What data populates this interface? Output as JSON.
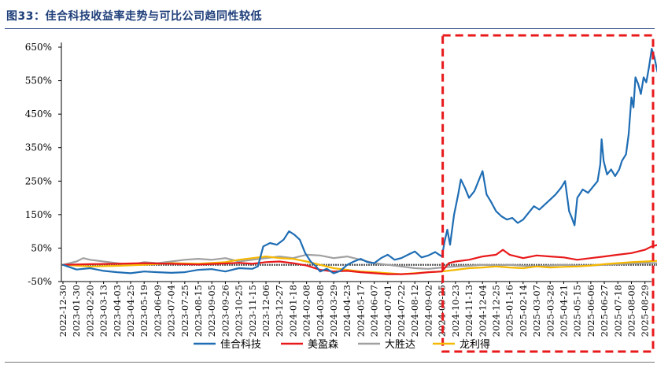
{
  "figure": {
    "title": "图33：佳合科技收益率走势与可比公司趋同性较低"
  },
  "chart_data": {
    "type": "line",
    "title": "图33：佳合科技收益率走势与可比公司趋同性较低",
    "xlabel": "",
    "ylabel": "",
    "ylim": [
      -50,
      650
    ],
    "yticks": [
      "650%",
      "550%",
      "450%",
      "350%",
      "250%",
      "150%",
      "50%",
      "-50%"
    ],
    "ytick_values": [
      650,
      550,
      450,
      350,
      250,
      150,
      50,
      -50
    ],
    "grid": false,
    "legend_position": "bottom",
    "x_tick_labels": [
      "2022-12-30",
      "2023-01-30",
      "2023-02-20",
      "2023-03-13",
      "2023-04-03",
      "2023-04-25",
      "2023-05-19",
      "2023-06-09",
      "2023-07-04",
      "2023-07-25",
      "2023-08-15",
      "2023-09-05",
      "2023-09-26",
      "2023-10-25",
      "2023-11-15",
      "2023-12-06",
      "2023-12-27",
      "2024-01-18",
      "2024-02-08",
      "2024-03-08",
      "2024-03-29",
      "2024-04-23",
      "2024-05-17",
      "2024-06-07",
      "2024-07-01",
      "2024-07-22",
      "2024-08-12",
      "2024-09-02",
      "2024-09-25",
      "2024-10-23",
      "2024-11-13",
      "2024-12-04",
      "2024-12-25",
      "2025-01-16",
      "2025-02-14",
      "2025-03-07",
      "2025-03-28",
      "2025-04-21",
      "2025-05-15",
      "2025-06-06",
      "2025-06-27",
      "2025-07-18",
      "2025-08-08",
      "2025-08-29"
    ],
    "highlight_box": {
      "from_tick": 28,
      "to_tick": 43,
      "color": "#e8191b",
      "style": "dashed"
    },
    "series": [
      {
        "name": "佳合科技",
        "color": "#1f6db4",
        "points": [
          [
            0,
            0
          ],
          [
            1,
            -14
          ],
          [
            2,
            -10
          ],
          [
            3,
            -18
          ],
          [
            4,
            -22
          ],
          [
            5,
            -25
          ],
          [
            6,
            -20
          ],
          [
            7,
            -22
          ],
          [
            8,
            -24
          ],
          [
            9,
            -22
          ],
          [
            10,
            -15
          ],
          [
            11,
            -13
          ],
          [
            12,
            -20
          ],
          [
            13,
            -10
          ],
          [
            14,
            -12
          ],
          [
            14.4,
            -5
          ],
          [
            14.8,
            55
          ],
          [
            15.3,
            65
          ],
          [
            15.8,
            60
          ],
          [
            16.3,
            75
          ],
          [
            16.7,
            100
          ],
          [
            17.1,
            90
          ],
          [
            17.5,
            75
          ],
          [
            17.9,
            35
          ],
          [
            18.3,
            10
          ],
          [
            18.7,
            -5
          ],
          [
            19,
            -20
          ],
          [
            19.5,
            -12
          ],
          [
            20,
            -25
          ],
          [
            20.5,
            -18
          ],
          [
            21,
            0
          ],
          [
            21.5,
            10
          ],
          [
            22,
            18
          ],
          [
            22.5,
            8
          ],
          [
            23,
            5
          ],
          [
            23.5,
            20
          ],
          [
            24,
            30
          ],
          [
            24.5,
            15
          ],
          [
            25,
            20
          ],
          [
            25.5,
            30
          ],
          [
            26,
            40
          ],
          [
            26.5,
            22
          ],
          [
            27,
            28
          ],
          [
            27.5,
            38
          ],
          [
            27.8,
            30
          ],
          [
            28,
            25
          ],
          [
            28.2,
            70
          ],
          [
            28.4,
            105
          ],
          [
            28.6,
            60
          ],
          [
            28.9,
            150
          ],
          [
            29.2,
            210
          ],
          [
            29.4,
            255
          ],
          [
            29.7,
            230
          ],
          [
            30,
            200
          ],
          [
            30.4,
            220
          ],
          [
            30.8,
            260
          ],
          [
            31,
            280
          ],
          [
            31.3,
            210
          ],
          [
            31.6,
            190
          ],
          [
            32,
            160
          ],
          [
            32.4,
            145
          ],
          [
            32.8,
            135
          ],
          [
            33.2,
            140
          ],
          [
            33.6,
            125
          ],
          [
            34,
            135
          ],
          [
            34.4,
            155
          ],
          [
            34.8,
            175
          ],
          [
            35.2,
            165
          ],
          [
            35.6,
            180
          ],
          [
            36,
            195
          ],
          [
            36.4,
            210
          ],
          [
            36.8,
            230
          ],
          [
            37.1,
            250
          ],
          [
            37.4,
            160
          ],
          [
            37.6,
            140
          ],
          [
            37.8,
            118
          ],
          [
            38,
            200
          ],
          [
            38.4,
            225
          ],
          [
            38.8,
            215
          ],
          [
            39.2,
            235
          ],
          [
            39.5,
            250
          ],
          [
            39.7,
            300
          ],
          [
            39.8,
            375
          ],
          [
            39.95,
            310
          ],
          [
            40.2,
            270
          ],
          [
            40.5,
            285
          ],
          [
            40.8,
            265
          ],
          [
            41.1,
            285
          ],
          [
            41.3,
            310
          ],
          [
            41.6,
            330
          ],
          [
            41.8,
            390
          ],
          [
            42,
            500
          ],
          [
            42.15,
            470
          ],
          [
            42.3,
            560
          ],
          [
            42.5,
            540
          ],
          [
            42.7,
            510
          ],
          [
            42.9,
            560
          ],
          [
            43.1,
            545
          ],
          [
            43.3,
            590
          ],
          [
            43.5,
            645
          ],
          [
            43.7,
            620
          ],
          [
            43.9,
            580
          ],
          [
            44.1,
            555
          ],
          [
            44.3,
            545
          ],
          [
            44.5,
            535
          ]
        ]
      },
      {
        "name": "美盈森",
        "color": "#e8191b",
        "points": [
          [
            0,
            0
          ],
          [
            2,
            2
          ],
          [
            4,
            3
          ],
          [
            6,
            5
          ],
          [
            8,
            3
          ],
          [
            10,
            1
          ],
          [
            12,
            4
          ],
          [
            13,
            6
          ],
          [
            14,
            3
          ],
          [
            15,
            8
          ],
          [
            16,
            10
          ],
          [
            17,
            5
          ],
          [
            18,
            -2
          ],
          [
            19,
            -15
          ],
          [
            20,
            -20
          ],
          [
            21,
            -18
          ],
          [
            22,
            -22
          ],
          [
            23,
            -25
          ],
          [
            24,
            -28
          ],
          [
            25,
            -28
          ],
          [
            26,
            -26
          ],
          [
            27,
            -22
          ],
          [
            28,
            -20
          ],
          [
            28.5,
            5
          ],
          [
            29,
            10
          ],
          [
            30,
            15
          ],
          [
            31,
            25
          ],
          [
            32,
            30
          ],
          [
            32.5,
            45
          ],
          [
            33,
            30
          ],
          [
            34,
            20
          ],
          [
            35,
            28
          ],
          [
            36,
            25
          ],
          [
            37,
            22
          ],
          [
            38,
            15
          ],
          [
            39,
            20
          ],
          [
            40,
            25
          ],
          [
            41,
            30
          ],
          [
            42,
            35
          ],
          [
            43,
            45
          ],
          [
            43.5,
            55
          ],
          [
            44,
            60
          ],
          [
            44.5,
            62
          ]
        ]
      },
      {
        "name": "大胜达",
        "color": "#a0a0a0",
        "points": [
          [
            0,
            0
          ],
          [
            1,
            10
          ],
          [
            1.5,
            20
          ],
          [
            2,
            15
          ],
          [
            3,
            10
          ],
          [
            4,
            5
          ],
          [
            5,
            0
          ],
          [
            6,
            8
          ],
          [
            7,
            5
          ],
          [
            8,
            10
          ],
          [
            9,
            15
          ],
          [
            10,
            18
          ],
          [
            11,
            15
          ],
          [
            12,
            20
          ],
          [
            13,
            10
          ],
          [
            14,
            15
          ],
          [
            15,
            20
          ],
          [
            16,
            25
          ],
          [
            17,
            20
          ],
          [
            18,
            30
          ],
          [
            19,
            28
          ],
          [
            20,
            20
          ],
          [
            21,
            25
          ],
          [
            22,
            15
          ],
          [
            23,
            5
          ],
          [
            24,
            0
          ],
          [
            25,
            -5
          ],
          [
            26,
            -10
          ],
          [
            27,
            -12
          ],
          [
            28,
            -8
          ],
          [
            29,
            -5
          ],
          [
            30,
            -3
          ],
          [
            31,
            0
          ],
          [
            32,
            -2
          ],
          [
            33,
            0
          ],
          [
            34,
            -3
          ],
          [
            35,
            -5
          ],
          [
            36,
            -2
          ],
          [
            37,
            0
          ],
          [
            38,
            -3
          ],
          [
            39,
            -2
          ],
          [
            40,
            0
          ],
          [
            41,
            2
          ],
          [
            42,
            4
          ],
          [
            43,
            6
          ],
          [
            44,
            5
          ],
          [
            44.5,
            7
          ]
        ]
      },
      {
        "name": "龙利得",
        "color": "#f5b800",
        "points": [
          [
            0,
            0
          ],
          [
            2,
            -5
          ],
          [
            4,
            -3
          ],
          [
            6,
            0
          ],
          [
            8,
            5
          ],
          [
            10,
            3
          ],
          [
            12,
            8
          ],
          [
            13,
            15
          ],
          [
            14,
            20
          ],
          [
            15,
            25
          ],
          [
            16,
            20
          ],
          [
            17,
            18
          ],
          [
            18,
            10
          ],
          [
            19,
            0
          ],
          [
            20,
            -10
          ],
          [
            21,
            -15
          ],
          [
            22,
            -20
          ],
          [
            23,
            -22
          ],
          [
            24,
            -25
          ],
          [
            25,
            -28
          ],
          [
            26,
            -25
          ],
          [
            27,
            -22
          ],
          [
            28,
            -20
          ],
          [
            29,
            -15
          ],
          [
            30,
            -10
          ],
          [
            31,
            -8
          ],
          [
            32,
            -5
          ],
          [
            33,
            -8
          ],
          [
            34,
            -10
          ],
          [
            35,
            -5
          ],
          [
            36,
            -8
          ],
          [
            37,
            -6
          ],
          [
            38,
            -5
          ],
          [
            39,
            -2
          ],
          [
            40,
            2
          ],
          [
            41,
            5
          ],
          [
            42,
            8
          ],
          [
            43,
            10
          ],
          [
            44,
            12
          ],
          [
            44.5,
            15
          ]
        ]
      }
    ],
    "baseline_band": {
      "color": "#000000",
      "value": 0
    }
  },
  "legend": [
    {
      "label": "佳合科技",
      "color": "#1f6db4"
    },
    {
      "label": "美盈森",
      "color": "#e8191b"
    },
    {
      "label": "大胜达",
      "color": "#a0a0a0"
    },
    {
      "label": "龙利得",
      "color": "#f5b800"
    }
  ]
}
